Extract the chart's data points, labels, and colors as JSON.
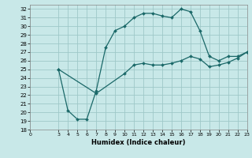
{
  "xlabel": "Humidex (Indice chaleur)",
  "bg_color": "#c8e8e8",
  "grid_color": "#9fc8c8",
  "line_color": "#1a6868",
  "xlim": [
    0,
    23
  ],
  "ylim": [
    18,
    32.5
  ],
  "xticks": [
    0,
    3,
    4,
    5,
    6,
    7,
    8,
    9,
    10,
    11,
    12,
    13,
    14,
    15,
    16,
    17,
    18,
    19,
    20,
    21,
    22,
    23
  ],
  "yticks": [
    18,
    19,
    20,
    21,
    22,
    23,
    24,
    25,
    26,
    27,
    28,
    29,
    30,
    31,
    32
  ],
  "curve1_x": [
    3,
    4,
    5,
    6,
    7,
    8,
    9,
    10,
    11,
    12,
    13,
    14,
    15,
    16,
    17,
    18,
    19,
    20,
    21,
    22,
    23
  ],
  "curve1_y": [
    25.0,
    20.2,
    19.2,
    19.2,
    22.5,
    27.5,
    29.5,
    30.0,
    31.0,
    31.5,
    31.5,
    31.2,
    31.0,
    32.0,
    31.7,
    29.5,
    26.5,
    26.0,
    26.5,
    26.5,
    27.0
  ],
  "curve2_x": [
    3,
    7,
    10,
    11,
    12,
    13,
    14,
    15,
    16,
    17,
    18,
    19,
    20,
    21,
    22,
    23
  ],
  "curve2_y": [
    25.0,
    22.2,
    24.5,
    25.5,
    25.7,
    25.5,
    25.5,
    25.7,
    26.0,
    26.5,
    26.2,
    25.3,
    25.5,
    25.8,
    26.3,
    27.0
  ]
}
